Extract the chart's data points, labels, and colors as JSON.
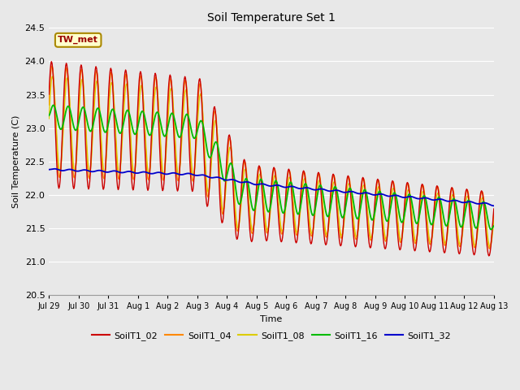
{
  "title": "Soil Temperature Set 1",
  "xlabel": "Time",
  "ylabel": "Soil Temperature (C)",
  "ylim": [
    20.5,
    24.5
  ],
  "background_color": "#e8e8e8",
  "plot_bg_color": "#e8e8e8",
  "grid_color": "#ffffff",
  "annotation_text": "TW_met",
  "annotation_bg": "#ffffcc",
  "annotation_border": "#aa8800",
  "annotation_text_color": "#990000",
  "x_tick_labels": [
    "Jul 29",
    "Jul 30",
    "Jul 31",
    "Aug 1",
    "Aug 2",
    "Aug 3",
    "Aug 4",
    "Aug 5",
    "Aug 6",
    "Aug 7",
    "Aug 8",
    "Aug 9",
    "Aug 10",
    "Aug 11",
    "Aug 12",
    "Aug 13"
  ],
  "series": {
    "SoilT1_02": {
      "color": "#cc0000",
      "linewidth": 1.0
    },
    "SoilT1_04": {
      "color": "#ff8800",
      "linewidth": 1.0
    },
    "SoilT1_08": {
      "color": "#ddcc00",
      "linewidth": 1.0
    },
    "SoilT1_16": {
      "color": "#00bb00",
      "linewidth": 1.3
    },
    "SoilT1_32": {
      "color": "#0000cc",
      "linewidth": 1.3
    }
  }
}
